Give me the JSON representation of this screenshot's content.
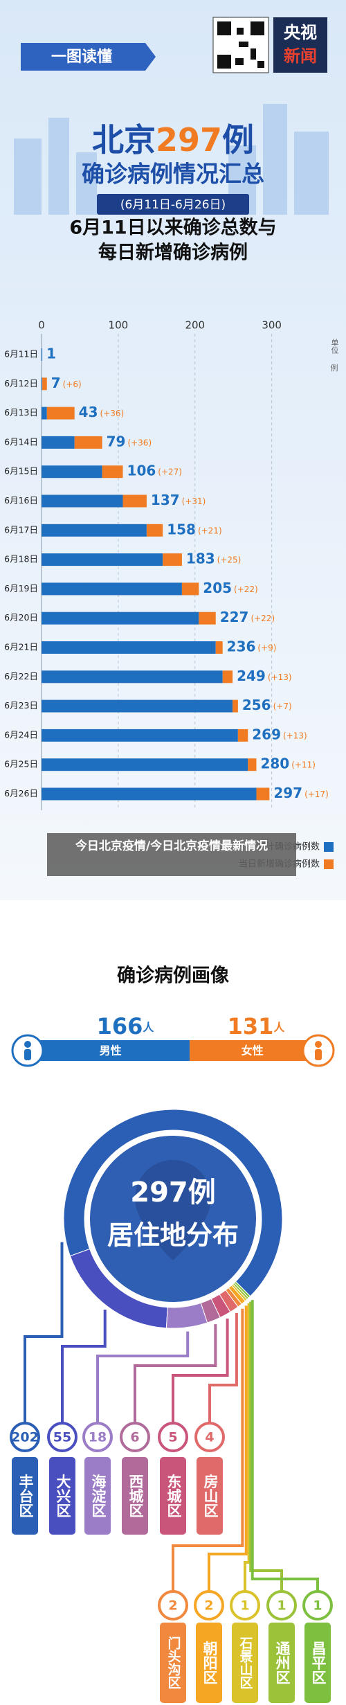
{
  "header": {
    "banner": "一图读懂",
    "logo_line1": "央视",
    "logo_line2": "新闻",
    "title_prefix": "北京",
    "title_number": "297",
    "title_suffix": "例",
    "title_line2": "确诊病例情况汇总",
    "date_range": "(6月11日-6月26日)"
  },
  "chart_data": {
    "type": "bar",
    "orientation": "horizontal",
    "stacked": true,
    "title_lines": [
      "6月11日以来确诊总数与",
      "每日新增确诊病例"
    ],
    "unit_label": "单位",
    "unit": "例",
    "categories": [
      "6月11日",
      "6月12日",
      "6月13日",
      "6月14日",
      "6月15日",
      "6月16日",
      "6月17日",
      "6月18日",
      "6月19日",
      "6月20日",
      "6月21日",
      "6月22日",
      "6月23日",
      "6月24日",
      "6月25日",
      "6月26日"
    ],
    "series": [
      {
        "name": "累计确诊病例数",
        "color": "#1f6fc0",
        "values": [
          1,
          1,
          7,
          43,
          79,
          106,
          137,
          158,
          183,
          205,
          227,
          236,
          249,
          256,
          269,
          280
        ]
      },
      {
        "name": "当日新增确诊病例数",
        "color": "#f07b22",
        "values": [
          0,
          6,
          36,
          36,
          27,
          31,
          21,
          25,
          22,
          22,
          9,
          13,
          7,
          13,
          11,
          17
        ],
        "value_labels": [
          null,
          "(+6)",
          "(+36)",
          "(+36)",
          "(+27)",
          "(+31)",
          "(+21)",
          "(+25)",
          "(+22)",
          "(+22)",
          "(+9)",
          "(+13)",
          "(+7)",
          "(+13)",
          "(+11)",
          "(+17)"
        ]
      }
    ],
    "totals": [
      1,
      7,
      43,
      79,
      106,
      137,
      158,
      183,
      205,
      227,
      236,
      249,
      256,
      269,
      280,
      297
    ],
    "xlim": [
      0,
      340
    ],
    "xticks": [
      0,
      100,
      200,
      300
    ],
    "grid": true
  },
  "overlay_caption": "今日北京疫情/今日北京疫情最新情况",
  "profile": {
    "title": "确诊病例画像",
    "gender": [
      {
        "count": 166,
        "unit": "人",
        "label": "男性",
        "color": "#1f6fc0"
      },
      {
        "count": 131,
        "unit": "人",
        "label": "女性",
        "color": "#f07b22"
      }
    ],
    "center_number": "297例",
    "center_text": "居住地分布",
    "districts": [
      {
        "name": "丰台区",
        "count": 202,
        "color": "#2a5fb5"
      },
      {
        "name": "大兴区",
        "count": 55,
        "color": "#4a4fbf"
      },
      {
        "name": "海淀区",
        "count": 18,
        "color": "#9b7cc6"
      },
      {
        "name": "西城区",
        "count": 6,
        "color": "#b06b9a"
      },
      {
        "name": "东城区",
        "count": 5,
        "color": "#c9557a"
      },
      {
        "name": "房山区",
        "count": 4,
        "color": "#e06a6a"
      },
      {
        "name": "门头沟区",
        "count": 2,
        "color": "#f0883e"
      },
      {
        "name": "朝阳区",
        "count": 2,
        "color": "#f5a623"
      },
      {
        "name": "石景山区",
        "count": 1,
        "color": "#d9c22a"
      },
      {
        "name": "通州区",
        "count": 1,
        "color": "#9cc23a"
      },
      {
        "name": "昌平区",
        "count": 1,
        "color": "#7dbf3f"
      }
    ]
  }
}
